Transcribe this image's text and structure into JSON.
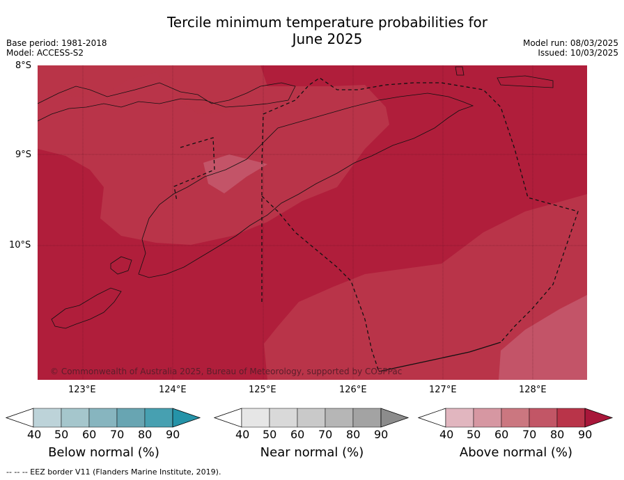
{
  "header": {
    "title_line1": "Tercile minimum temperature probabilities for",
    "title_line2": "June 2025",
    "base_period": "Base period: 1981-2018",
    "model": "Model: ACCESS-S2",
    "model_run": "Model run: 08/03/2025",
    "issued": "Issued: 10/03/2025"
  },
  "map": {
    "lat_labels": [
      "8°S",
      "9°S",
      "10°S"
    ],
    "lon_labels": [
      "123°E",
      "124°E",
      "125°E",
      "126°E",
      "127°E",
      "128°E"
    ],
    "copyright": "© Commonwealth of Australia 2025, Bureau of Meteorology, supported by COSPPac",
    "colors": {
      "above_80": "#b93449",
      "above_90": "#b01e3b",
      "above_70": "#c35468"
    }
  },
  "colorbars": {
    "below": {
      "label": "Below normal (%)",
      "ticks": [
        "40",
        "50",
        "60",
        "70",
        "80",
        "90"
      ],
      "colors": [
        "#ffffff",
        "#bdd3d9",
        "#a5c6cc",
        "#87b5bf",
        "#68a5b2",
        "#47a0b1",
        "#2593a8"
      ]
    },
    "near": {
      "label": "Near normal (%)",
      "ticks": [
        "40",
        "50",
        "60",
        "70",
        "80",
        "90"
      ],
      "colors": [
        "#ffffff",
        "#e6e6e6",
        "#d9d9d9",
        "#c9c9c9",
        "#b6b6b6",
        "#a3a3a3",
        "#8c8c8c"
      ]
    },
    "above": {
      "label": "Above normal (%)",
      "ticks": [
        "40",
        "50",
        "60",
        "70",
        "80",
        "90"
      ],
      "colors": [
        "#ffffff",
        "#e1b6bf",
        "#d697a2",
        "#cb7780",
        "#c25666",
        "#b93449",
        "#a8173a"
      ]
    }
  },
  "footnote": "--  --  -- EEZ border V11 (Flanders Marine Institute, 2019)."
}
